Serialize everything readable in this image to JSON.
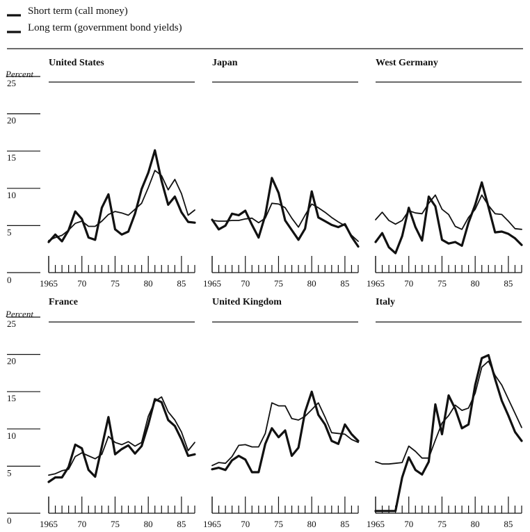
{
  "legend": [
    {
      "label": "Short term (call money)",
      "style": "thick"
    },
    {
      "label": "Long term (government bond yields)",
      "style": "thin"
    }
  ],
  "y_axis_label": "Percent",
  "chart_data": [
    {
      "type": "line",
      "title": "United States",
      "x": [
        1965,
        1966,
        1967,
        1968,
        1969,
        1970,
        1971,
        1972,
        1973,
        1974,
        1975,
        1976,
        1977,
        1978,
        1979,
        1980,
        1981,
        1982,
        1983,
        1984,
        1985,
        1986,
        1987
      ],
      "series": [
        {
          "name": "Short term (call money)",
          "values": [
            4.1,
            5.1,
            4.2,
            5.7,
            8.2,
            7.2,
            4.7,
            4.4,
            8.7,
            10.5,
            5.8,
            5.1,
            5.5,
            7.9,
            11.2,
            13.4,
            16.4,
            12.3,
            9.1,
            10.2,
            8.1,
            6.8,
            6.7
          ]
        },
        {
          "name": "Long term (government bond yields)",
          "values": [
            4.3,
            4.7,
            5.0,
            5.7,
            6.6,
            6.9,
            6.2,
            6.2,
            6.9,
            7.8,
            8.2,
            8.0,
            7.7,
            8.5,
            9.3,
            11.4,
            13.7,
            13.0,
            11.1,
            12.5,
            10.6,
            7.7,
            8.4
          ]
        }
      ],
      "ylim": [
        0,
        25
      ]
    },
    {
      "type": "line",
      "title": "Japan",
      "x": [
        1965,
        1966,
        1967,
        1968,
        1969,
        1970,
        1971,
        1972,
        1973,
        1974,
        1975,
        1976,
        1977,
        1978,
        1979,
        1980,
        1981,
        1982,
        1983,
        1984,
        1985,
        1986,
        1987
      ],
      "series": [
        {
          "name": "Short term (call money)",
          "values": [
            7.1,
            5.8,
            6.3,
            7.9,
            7.7,
            8.3,
            6.4,
            4.7,
            7.7,
            12.7,
            10.7,
            7.0,
            5.7,
            4.4,
            5.9,
            10.9,
            7.4,
            6.9,
            6.4,
            6.1,
            6.5,
            4.8,
            3.5
          ]
        },
        {
          "name": "Long term (government bond yields)",
          "values": [
            7.0,
            6.9,
            6.9,
            7.0,
            7.0,
            7.2,
            7.3,
            6.7,
            7.3,
            9.3,
            9.2,
            8.7,
            7.3,
            6.1,
            7.7,
            9.2,
            8.7,
            8.1,
            7.4,
            6.8,
            6.3,
            5.0,
            4.2
          ]
        }
      ],
      "ylim": [
        0,
        25
      ]
    },
    {
      "type": "line",
      "title": "West Germany",
      "x": [
        1965,
        1966,
        1967,
        1968,
        1969,
        1970,
        1971,
        1972,
        1973,
        1974,
        1975,
        1976,
        1977,
        1978,
        1979,
        1980,
        1981,
        1982,
        1983,
        1984,
        1985,
        1986,
        1987
      ],
      "series": [
        {
          "name": "Short term (call money)",
          "values": [
            4.1,
            5.3,
            3.4,
            2.6,
            4.9,
            8.7,
            6.1,
            4.3,
            10.2,
            8.9,
            4.4,
            3.9,
            4.1,
            3.6,
            6.7,
            9.1,
            12.1,
            8.8,
            5.4,
            5.5,
            5.2,
            4.6,
            3.7
          ]
        },
        {
          "name": "Long term (government bond yields)",
          "values": [
            7.1,
            8.1,
            7.0,
            6.5,
            7.0,
            8.3,
            8.0,
            7.9,
            9.3,
            10.4,
            8.5,
            7.8,
            6.2,
            5.8,
            7.4,
            8.5,
            10.4,
            9.0,
            7.9,
            7.8,
            6.9,
            5.9,
            5.8
          ]
        }
      ],
      "ylim": [
        0,
        25
      ]
    },
    {
      "type": "line",
      "title": "France",
      "x": [
        1965,
        1966,
        1967,
        1968,
        1969,
        1970,
        1971,
        1972,
        1973,
        1974,
        1975,
        1976,
        1977,
        1978,
        1979,
        1980,
        1981,
        1982,
        1983,
        1984,
        1985,
        1986,
        1987
      ],
      "series": [
        {
          "name": "Short term (call money)",
          "values": [
            4.2,
            4.8,
            4.8,
            6.2,
            9.2,
            8.7,
            5.8,
            4.9,
            8.9,
            12.9,
            7.9,
            8.6,
            9.1,
            8.0,
            9.0,
            11.9,
            15.3,
            14.9,
            12.5,
            11.7,
            9.9,
            7.7,
            7.9
          ]
        },
        {
          "name": "Long term (government bond yields)",
          "values": [
            5.1,
            5.3,
            5.7,
            5.9,
            7.6,
            8.1,
            7.7,
            7.3,
            7.9,
            10.3,
            9.5,
            9.2,
            9.6,
            9.0,
            9.5,
            13.0,
            15.0,
            15.6,
            13.6,
            12.5,
            10.9,
            8.4,
            9.5
          ]
        }
      ],
      "ylim": [
        0,
        25
      ]
    },
    {
      "type": "line",
      "title": "United Kingdom",
      "x": [
        1965,
        1966,
        1967,
        1968,
        1969,
        1970,
        1971,
        1972,
        1973,
        1974,
        1975,
        1976,
        1977,
        1978,
        1979,
        1980,
        1981,
        1982,
        1983,
        1984,
        1985,
        1986,
        1987
      ],
      "series": [
        {
          "name": "Short term (call money)",
          "values": [
            5.9,
            6.1,
            5.8,
            7.1,
            7.7,
            7.2,
            5.5,
            5.5,
            9.3,
            11.4,
            10.2,
            11.1,
            7.7,
            8.8,
            13.6,
            16.3,
            13.2,
            11.9,
            9.7,
            9.3,
            11.9,
            10.6,
            9.7
          ]
        },
        {
          "name": "Long term (government bond yields)",
          "values": [
            6.4,
            6.8,
            6.7,
            7.6,
            9.1,
            9.2,
            8.9,
            8.9,
            10.7,
            14.8,
            14.4,
            14.4,
            12.7,
            12.5,
            13.0,
            13.9,
            14.8,
            12.9,
            10.8,
            10.7,
            10.6,
            9.9,
            9.5
          ]
        }
      ],
      "ylim": [
        0,
        25
      ]
    },
    {
      "type": "line",
      "title": "Italy",
      "x": [
        1965,
        1966,
        1967,
        1968,
        1969,
        1970,
        1971,
        1972,
        1973,
        1974,
        1975,
        1976,
        1977,
        1978,
        1979,
        1980,
        1981,
        1982,
        1983,
        1984,
        1985,
        1986,
        1987
      ],
      "series": [
        {
          "name": "Short term (call money)",
          "values": [
            0.3,
            0.3,
            0.3,
            0.3,
            4.8,
            7.5,
            5.8,
            5.2,
            6.9,
            14.6,
            10.6,
            15.8,
            14.0,
            11.4,
            11.9,
            17.2,
            20.8,
            21.2,
            18.0,
            15.1,
            13.1,
            10.9,
            9.7
          ]
        },
        {
          "name": "Long term (government bond yields)",
          "values": [
            6.9,
            6.6,
            6.6,
            6.7,
            6.8,
            9.0,
            8.3,
            7.4,
            7.4,
            9.8,
            12.1,
            13.1,
            14.5,
            13.8,
            14.1,
            16.1,
            19.6,
            20.4,
            18.5,
            17.2,
            15.3,
            13.4,
            11.5
          ]
        }
      ],
      "ylim": [
        0,
        25
      ]
    }
  ],
  "y_ticks": [
    "25",
    "20",
    "15",
    "10",
    "5",
    "0"
  ],
  "x_ticks": [
    "1965",
    "70",
    "75",
    "80",
    "85"
  ]
}
